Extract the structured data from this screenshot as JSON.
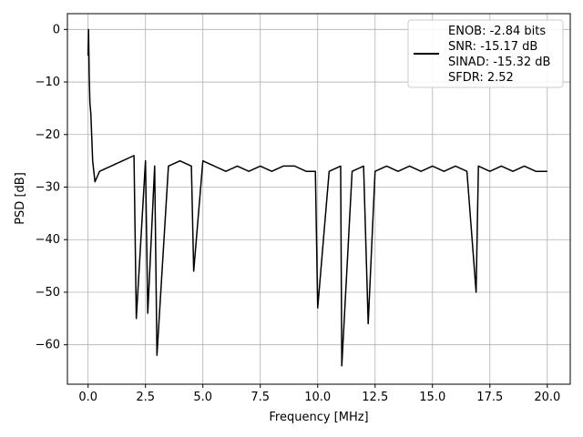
{
  "chart_data": {
    "type": "line",
    "title": "",
    "xlabel": "Frequency [MHz]",
    "ylabel": "PSD [dB]",
    "xlim": [
      -0.9,
      21.0
    ],
    "ylim": [
      -67.5,
      3.0
    ],
    "x_ticks": [
      0.0,
      2.5,
      5.0,
      7.5,
      10.0,
      12.5,
      15.0,
      17.5,
      20.0
    ],
    "x_tick_labels": [
      "0.0",
      "2.5",
      "5.0",
      "7.5",
      "10.0",
      "12.5",
      "15.0",
      "17.5",
      "20.0"
    ],
    "y_ticks": [
      0,
      -10,
      -20,
      -30,
      -40,
      -50,
      -60
    ],
    "y_tick_labels": [
      "0",
      "−10",
      "−20",
      "−30",
      "−40",
      "−50",
      "−60"
    ],
    "grid": true,
    "legend_position": "top-right",
    "series": [
      {
        "name": "",
        "color": "#000000",
        "x": [
          0.0,
          0.02,
          0.05,
          0.08,
          0.12,
          0.2,
          0.3,
          0.5,
          1.0,
          1.5,
          2.0,
          2.1,
          2.5,
          2.6,
          2.9,
          3.0,
          3.5,
          4.0,
          4.5,
          4.6,
          5.0,
          5.5,
          6.0,
          6.5,
          7.0,
          7.5,
          8.0,
          8.5,
          9.0,
          9.5,
          9.9,
          10.0,
          10.5,
          11.0,
          11.05,
          11.5,
          12.0,
          12.2,
          12.5,
          13.0,
          13.5,
          14.0,
          14.5,
          15.0,
          15.5,
          16.0,
          16.5,
          16.9,
          17.0,
          17.5,
          18.0,
          18.5,
          19.0,
          19.5,
          20.0
        ],
        "y": [
          -5,
          0,
          -9,
          -14,
          -16,
          -25,
          -29,
          -27,
          -26,
          -25,
          -24,
          -55,
          -25,
          -54,
          -26,
          -62,
          -26,
          -25,
          -26,
          -46,
          -25,
          -26,
          -27,
          -26,
          -27,
          -26,
          -27,
          -26,
          -26,
          -27,
          -27,
          -53,
          -27,
          -26,
          -64,
          -27,
          -26,
          -56,
          -27,
          -26,
          -27,
          -26,
          -27,
          -26,
          -27,
          -26,
          -27,
          -50,
          -26,
          -27,
          -26,
          -27,
          -26,
          -27,
          -27
        ]
      }
    ],
    "legend_entries": [
      "ENOB: -2.84 bits",
      "SNR: -15.17 dB",
      "SINAD: -15.32 dB",
      "SFDR: 2.52"
    ]
  }
}
